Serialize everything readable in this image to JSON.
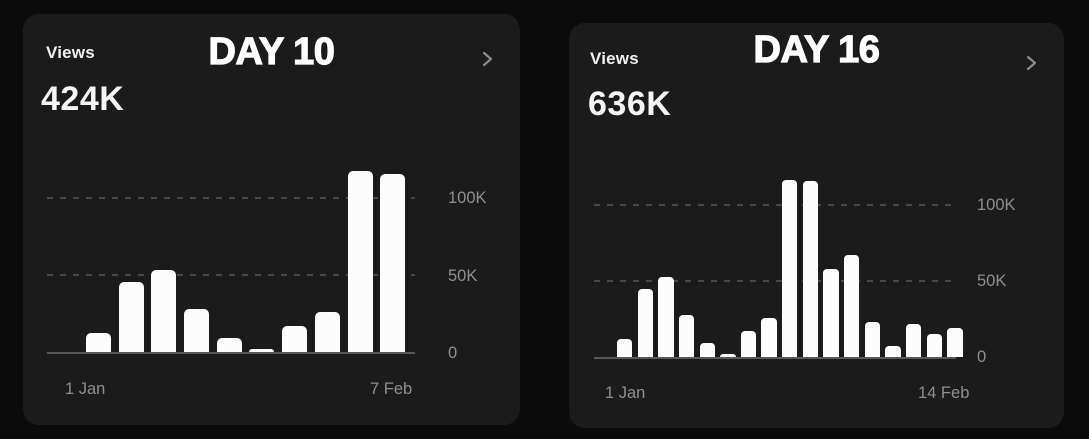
{
  "colors": {
    "page_bg": "#0b0b0b",
    "card_bg": "#1b1b1b",
    "bar": "#ffffff",
    "muted_text": "#8f8f8f",
    "gridline": "#474747"
  },
  "cards": [
    {
      "metric_label": "Views",
      "metric_value": "424K",
      "overlay_title": "DAY 10",
      "chevron_icon": "chevron-right",
      "chart_data": {
        "type": "bar",
        "title": "DAY 10",
        "series_label": "Views",
        "total": "424K",
        "values_k": [
          12,
          45,
          53,
          28,
          9,
          2,
          17,
          26,
          117,
          115
        ],
        "x_tick_labels": [
          "1 Jan",
          "7 Feb"
        ],
        "y_tick_labels": [
          "100K",
          "50K",
          "0"
        ],
        "ylim_k": [
          0,
          125
        ],
        "grid": "dashed horizontal at 50K and 100K, solid baseline at 0",
        "legend": "none",
        "bar_color": "#ffffff"
      }
    },
    {
      "metric_label": "Views",
      "metric_value": "636K",
      "overlay_title": "DAY 16",
      "chevron_icon": "chevron-right",
      "chart_data": {
        "type": "bar",
        "title": "DAY 16",
        "series_label": "Views",
        "total": "636K",
        "values_k": [
          12,
          45,
          53,
          28,
          9,
          2,
          17,
          26,
          117,
          116,
          58,
          67,
          23,
          7,
          22,
          15,
          19
        ],
        "x_tick_labels": [
          "1 Jan",
          "14 Feb"
        ],
        "y_tick_labels": [
          "100K",
          "50K",
          "0"
        ],
        "ylim_k": [
          0,
          125
        ],
        "grid": "dashed horizontal at 50K and 100K, solid baseline at 0",
        "legend": "none",
        "bar_color": "#ffffff"
      }
    }
  ]
}
